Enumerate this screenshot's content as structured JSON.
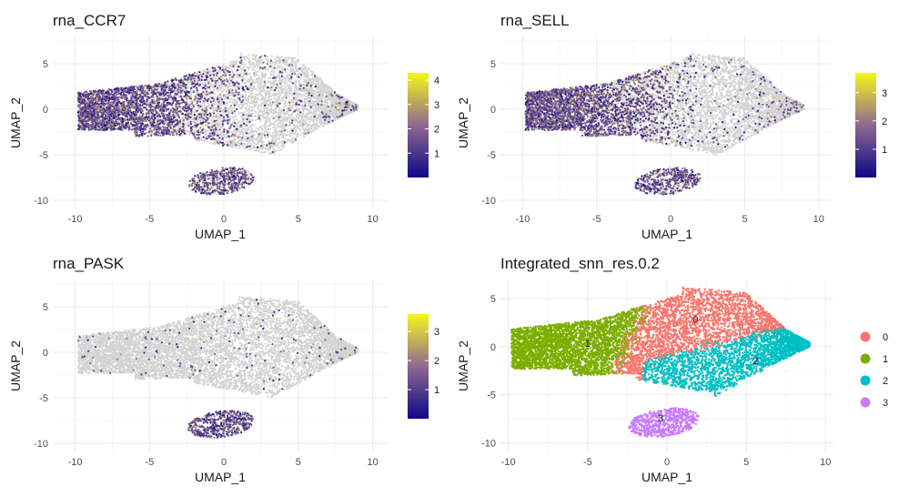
{
  "chart_data": [
    {
      "type": "scatter",
      "title": "rna_CCR7",
      "xlabel": "UMAP_1",
      "ylabel": "UMAP_2",
      "xlim": [
        -11.5,
        11
      ],
      "ylim": [
        -11,
        8
      ],
      "x_ticks": [
        -10,
        -5,
        0,
        5,
        10
      ],
      "y_ticks": [
        -10,
        -5,
        0,
        5
      ],
      "x_tick_labels": [
        "-10",
        "-5",
        "0",
        "5",
        "10"
      ],
      "y_tick_labels": [
        "-10",
        "-5",
        "0",
        "5"
      ],
      "grid": true,
      "legend_position": "right",
      "colorbar": {
        "min": 0,
        "max": 4.3,
        "ticks": [
          1,
          2,
          3,
          4
        ],
        "tick_labels": [
          "1",
          "2",
          "3",
          "4"
        ],
        "colors": [
          "#0d0887",
          "#8e6a8e",
          "#f6f51e"
        ]
      },
      "expression_focus": "left",
      "background_color": "#d3d3d3"
    },
    {
      "type": "scatter",
      "title": "rna_SELL",
      "xlabel": "UMAP_1",
      "ylabel": "UMAP_2",
      "xlim": [
        -11.5,
        11
      ],
      "ylim": [
        -11,
        8
      ],
      "x_ticks": [
        -10,
        -5,
        0,
        5,
        10
      ],
      "y_ticks": [
        -10,
        -5,
        0,
        5
      ],
      "x_tick_labels": [
        "-10",
        "-5",
        "0",
        "5",
        "10"
      ],
      "y_tick_labels": [
        "-10",
        "-5",
        "0",
        "5"
      ],
      "grid": true,
      "legend_position": "right",
      "colorbar": {
        "min": 0,
        "max": 3.7,
        "ticks": [
          1,
          2,
          3
        ],
        "tick_labels": [
          "1",
          "2",
          "3"
        ],
        "colors": [
          "#0d0887",
          "#8e6a8e",
          "#f6f51e"
        ]
      },
      "expression_focus": "left",
      "background_color": "#d3d3d3"
    },
    {
      "type": "scatter",
      "title": "rna_PASK",
      "xlabel": "UMAP_1",
      "ylabel": "UMAP_2",
      "xlim": [
        -11.5,
        11
      ],
      "ylim": [
        -11,
        8
      ],
      "x_ticks": [
        -10,
        -5,
        0,
        5,
        10
      ],
      "y_ticks": [
        -10,
        -5,
        0,
        5
      ],
      "x_tick_labels": [
        "-10",
        "-5",
        "0",
        "5",
        "10"
      ],
      "y_tick_labels": [
        "-10",
        "-5",
        "0",
        "5"
      ],
      "grid": true,
      "legend_position": "right",
      "colorbar": {
        "min": 0,
        "max": 3.6,
        "ticks": [
          1,
          2,
          3
        ],
        "tick_labels": [
          "1",
          "2",
          "3"
        ],
        "colors": [
          "#0d0887",
          "#8e6a8e",
          "#f6f51e"
        ]
      },
      "expression_focus": "cluster3",
      "background_color": "#d3d3d3"
    },
    {
      "type": "scatter",
      "title": "Integrated_snn_res.0.2",
      "xlabel": "UMAP_1",
      "ylabel": "UMAP_2",
      "xlim": [
        -10.5,
        10.5
      ],
      "ylim": [
        -11,
        7
      ],
      "x_ticks": [
        -10,
        -5,
        0,
        5,
        10
      ],
      "y_ticks": [
        -10,
        -5,
        0,
        5
      ],
      "x_tick_labels": [
        "-10",
        "-5",
        "0",
        "5",
        "10"
      ],
      "y_tick_labels": [
        "-10",
        "-5",
        "0",
        "5"
      ],
      "grid": true,
      "legend_position": "right",
      "clusters": [
        {
          "name": "0",
          "color": "#f8766d",
          "label_x": 1.8,
          "label_y": 2.5
        },
        {
          "name": "1",
          "color": "#7cae00",
          "label_x": -5.0,
          "label_y": 0.0
        },
        {
          "name": "2",
          "color": "#00bfc4",
          "label_x": 5.6,
          "label_y": -1.8
        },
        {
          "name": "3",
          "color": "#c77cff",
          "label_x": -0.4,
          "label_y": -7.8
        }
      ]
    }
  ]
}
